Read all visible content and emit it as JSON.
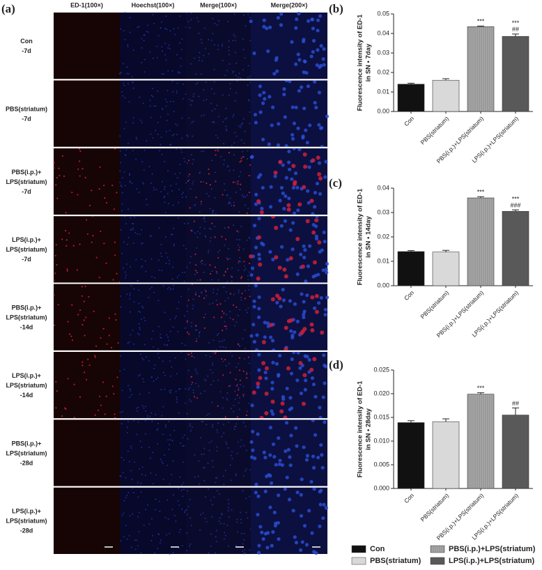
{
  "panel_a": {
    "label": "(a)",
    "columns": [
      "ED-1(100×)",
      "Hoechst(100×)",
      "Merge(100×)",
      "Merge(200×)"
    ],
    "rows": [
      [
        "Con",
        "-7d"
      ],
      [
        "PBS(striatum)",
        "-7d"
      ],
      [
        "PBS(i.p.)+",
        "LPS(striatum)",
        "-7d"
      ],
      [
        "LPS(i.p.)+",
        "LPS(striatum)",
        "-7d"
      ],
      [
        "PBS(i.p.)+",
        "LPS(striatum)",
        "-14d"
      ],
      [
        "LPS(i.p.)+",
        "LPS(striatum)",
        "-14d"
      ],
      [
        "PBS(i.p.)+",
        "LPS(striatum)",
        "-28d"
      ],
      [
        "LPS(i.p.)+",
        "LPS(striatum)",
        "-28d"
      ]
    ]
  },
  "chart_data": [
    {
      "type": "bar",
      "label": "(b)",
      "ylabel": [
        "Fluorescence intensity of ED-1",
        "in SN • 7day"
      ],
      "categories": [
        "Con",
        "PBS(striatum)",
        "PBS(i.p.)+LPS(striatum)",
        "LPS(i.p.)+LPS(striatum)"
      ],
      "colors": [
        "#111111",
        "#d9d9d9",
        "#a8a8a8",
        "#595959"
      ],
      "values": [
        0.014,
        0.016,
        0.0435,
        0.0385
      ],
      "errors": [
        0.0005,
        0.0008,
        0.0003,
        0.0012
      ],
      "annotations": [
        null,
        null,
        [
          "***"
        ],
        [
          "***",
          "##"
        ]
      ],
      "ylim": [
        0,
        0.05
      ],
      "yticks": [
        {
          "value": 0,
          "label": "0.00"
        },
        0.01,
        0.02,
        0.03,
        0.04,
        0.05
      ]
    },
    {
      "type": "bar",
      "label": "(c)",
      "ylabel": [
        "Fluorescence intensity of ED-1",
        "in SN • 14day"
      ],
      "categories": [
        "Con",
        "PBS(striatum)",
        "PBS(i.p.)+LPS(striatum)",
        "LPS(i.p.)+LPS(striatum)"
      ],
      "colors": [
        "#111111",
        "#d9d9d9",
        "#a8a8a8",
        "#595959"
      ],
      "values": [
        0.014,
        0.0138,
        0.036,
        0.0305
      ],
      "errors": [
        0.0004,
        0.0007,
        0.0005,
        0.0006
      ],
      "annotations": [
        null,
        null,
        [
          "***"
        ],
        [
          "***",
          "###"
        ]
      ],
      "ylim": [
        0,
        0.04
      ],
      "yticks": [
        {
          "value": 0,
          "label": "0.00"
        },
        0.01,
        0.02,
        0.03,
        0.04
      ]
    },
    {
      "type": "bar",
      "label": "(d)",
      "ylabel": [
        "Fluorescence intensity of ED-1",
        "in SN • 28day"
      ],
      "categories": [
        "Con",
        "PBS(striatum)",
        "PBS(i.p.)+LPS(striatum)",
        "LPS(i.p.)+LPS(striatum)"
      ],
      "colors": [
        "#111111",
        "#d9d9d9",
        "#a8a8a8",
        "#595959"
      ],
      "values": [
        0.0139,
        0.0141,
        0.0199,
        0.0155
      ],
      "errors": [
        0.0004,
        0.0006,
        0.0003,
        0.0015
      ],
      "annotations": [
        null,
        null,
        [
          "***"
        ],
        [
          "##"
        ]
      ],
      "ylim": [
        0,
        0.025
      ],
      "yticks": [
        {
          "value": 0,
          "label": "0.000"
        },
        0.005,
        {
          "value": 0.01,
          "label": "0.010"
        },
        0.015,
        {
          "value": 0.02,
          "label": "0.020"
        },
        0.025
      ]
    }
  ]
}
